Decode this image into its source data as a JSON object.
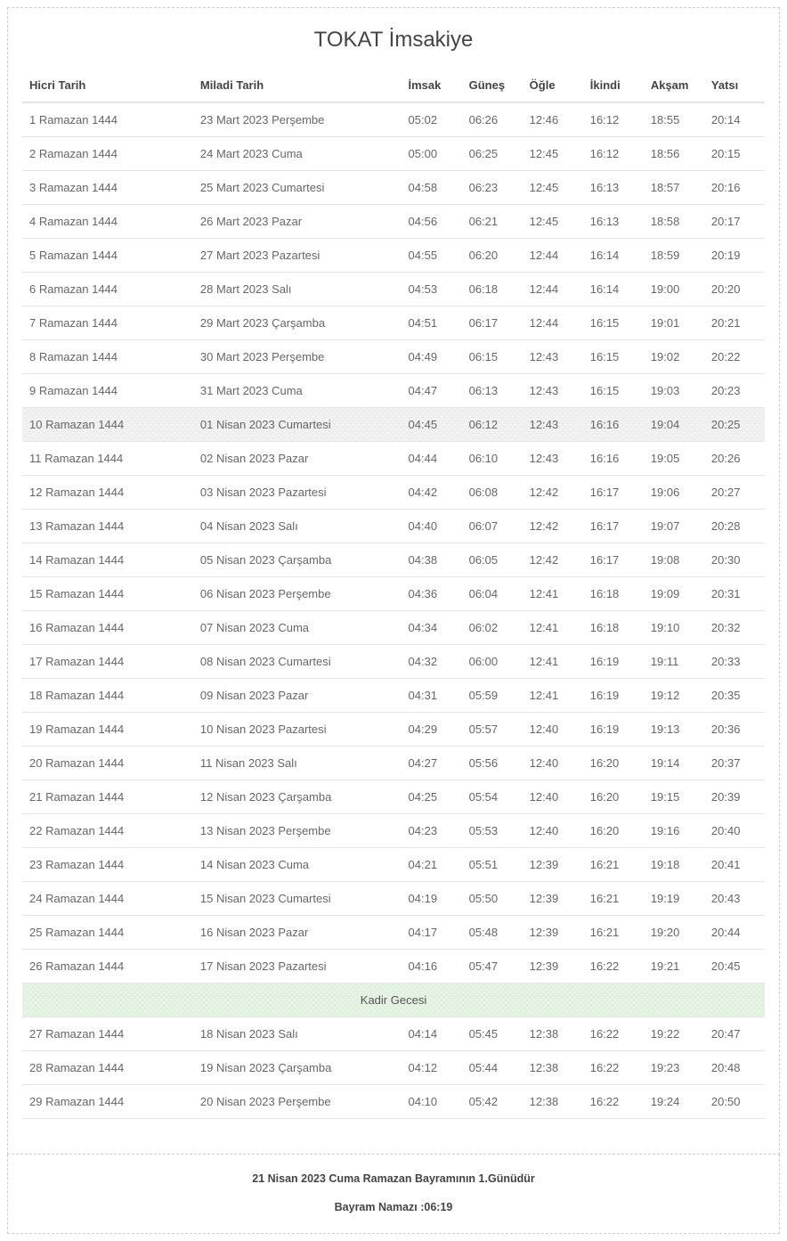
{
  "title": "TOKAT İmsakiye",
  "headers": {
    "hicri": "Hicri Tarih",
    "miladi": "Miladi Tarih",
    "imsak": "İmsak",
    "gunes": "Güneş",
    "ogle": "Öğle",
    "ikindi": "İkindi",
    "aksam": "Akşam",
    "yatsi": "Yatsı"
  },
  "special_row_label": "Kadir Gecesi",
  "highlight_index": 9,
  "special_row_after_index": 25,
  "rows": [
    {
      "hicri": "1 Ramazan 1444",
      "miladi": "23 Mart 2023 Perşembe",
      "imsak": "05:02",
      "gunes": "06:26",
      "ogle": "12:46",
      "ikindi": "16:12",
      "aksam": "18:55",
      "yatsi": "20:14"
    },
    {
      "hicri": "2 Ramazan 1444",
      "miladi": "24 Mart 2023 Cuma",
      "imsak": "05:00",
      "gunes": "06:25",
      "ogle": "12:45",
      "ikindi": "16:12",
      "aksam": "18:56",
      "yatsi": "20:15"
    },
    {
      "hicri": "3 Ramazan 1444",
      "miladi": "25 Mart 2023 Cumartesi",
      "imsak": "04:58",
      "gunes": "06:23",
      "ogle": "12:45",
      "ikindi": "16:13",
      "aksam": "18:57",
      "yatsi": "20:16"
    },
    {
      "hicri": "4 Ramazan 1444",
      "miladi": "26 Mart 2023 Pazar",
      "imsak": "04:56",
      "gunes": "06:21",
      "ogle": "12:45",
      "ikindi": "16:13",
      "aksam": "18:58",
      "yatsi": "20:17"
    },
    {
      "hicri": "5 Ramazan 1444",
      "miladi": "27 Mart 2023 Pazartesi",
      "imsak": "04:55",
      "gunes": "06:20",
      "ogle": "12:44",
      "ikindi": "16:14",
      "aksam": "18:59",
      "yatsi": "20:19"
    },
    {
      "hicri": "6 Ramazan 1444",
      "miladi": "28 Mart 2023 Salı",
      "imsak": "04:53",
      "gunes": "06:18",
      "ogle": "12:44",
      "ikindi": "16:14",
      "aksam": "19:00",
      "yatsi": "20:20"
    },
    {
      "hicri": "7 Ramazan 1444",
      "miladi": "29 Mart 2023 Çarşamba",
      "imsak": "04:51",
      "gunes": "06:17",
      "ogle": "12:44",
      "ikindi": "16:15",
      "aksam": "19:01",
      "yatsi": "20:21"
    },
    {
      "hicri": "8 Ramazan 1444",
      "miladi": "30 Mart 2023 Perşembe",
      "imsak": "04:49",
      "gunes": "06:15",
      "ogle": "12:43",
      "ikindi": "16:15",
      "aksam": "19:02",
      "yatsi": "20:22"
    },
    {
      "hicri": "9 Ramazan 1444",
      "miladi": "31 Mart 2023 Cuma",
      "imsak": "04:47",
      "gunes": "06:13",
      "ogle": "12:43",
      "ikindi": "16:15",
      "aksam": "19:03",
      "yatsi": "20:23"
    },
    {
      "hicri": "10 Ramazan 1444",
      "miladi": "01 Nisan 2023 Cumartesi",
      "imsak": "04:45",
      "gunes": "06:12",
      "ogle": "12:43",
      "ikindi": "16:16",
      "aksam": "19:04",
      "yatsi": "20:25"
    },
    {
      "hicri": "11 Ramazan 1444",
      "miladi": "02 Nisan 2023 Pazar",
      "imsak": "04:44",
      "gunes": "06:10",
      "ogle": "12:43",
      "ikindi": "16:16",
      "aksam": "19:05",
      "yatsi": "20:26"
    },
    {
      "hicri": "12 Ramazan 1444",
      "miladi": "03 Nisan 2023 Pazartesi",
      "imsak": "04:42",
      "gunes": "06:08",
      "ogle": "12:42",
      "ikindi": "16:17",
      "aksam": "19:06",
      "yatsi": "20:27"
    },
    {
      "hicri": "13 Ramazan 1444",
      "miladi": "04 Nisan 2023 Salı",
      "imsak": "04:40",
      "gunes": "06:07",
      "ogle": "12:42",
      "ikindi": "16:17",
      "aksam": "19:07",
      "yatsi": "20:28"
    },
    {
      "hicri": "14 Ramazan 1444",
      "miladi": "05 Nisan 2023 Çarşamba",
      "imsak": "04:38",
      "gunes": "06:05",
      "ogle": "12:42",
      "ikindi": "16:17",
      "aksam": "19:08",
      "yatsi": "20:30"
    },
    {
      "hicri": "15 Ramazan 1444",
      "miladi": "06 Nisan 2023 Perşembe",
      "imsak": "04:36",
      "gunes": "06:04",
      "ogle": "12:41",
      "ikindi": "16:18",
      "aksam": "19:09",
      "yatsi": "20:31"
    },
    {
      "hicri": "16 Ramazan 1444",
      "miladi": "07 Nisan 2023 Cuma",
      "imsak": "04:34",
      "gunes": "06:02",
      "ogle": "12:41",
      "ikindi": "16:18",
      "aksam": "19:10",
      "yatsi": "20:32"
    },
    {
      "hicri": "17 Ramazan 1444",
      "miladi": "08 Nisan 2023 Cumartesi",
      "imsak": "04:32",
      "gunes": "06:00",
      "ogle": "12:41",
      "ikindi": "16:19",
      "aksam": "19:11",
      "yatsi": "20:33"
    },
    {
      "hicri": "18 Ramazan 1444",
      "miladi": "09 Nisan 2023 Pazar",
      "imsak": "04:31",
      "gunes": "05:59",
      "ogle": "12:41",
      "ikindi": "16:19",
      "aksam": "19:12",
      "yatsi": "20:35"
    },
    {
      "hicri": "19 Ramazan 1444",
      "miladi": "10 Nisan 2023 Pazartesi",
      "imsak": "04:29",
      "gunes": "05:57",
      "ogle": "12:40",
      "ikindi": "16:19",
      "aksam": "19:13",
      "yatsi": "20:36"
    },
    {
      "hicri": "20 Ramazan 1444",
      "miladi": "11 Nisan 2023 Salı",
      "imsak": "04:27",
      "gunes": "05:56",
      "ogle": "12:40",
      "ikindi": "16:20",
      "aksam": "19:14",
      "yatsi": "20:37"
    },
    {
      "hicri": "21 Ramazan 1444",
      "miladi": "12 Nisan 2023 Çarşamba",
      "imsak": "04:25",
      "gunes": "05:54",
      "ogle": "12:40",
      "ikindi": "16:20",
      "aksam": "19:15",
      "yatsi": "20:39"
    },
    {
      "hicri": "22 Ramazan 1444",
      "miladi": "13 Nisan 2023 Perşembe",
      "imsak": "04:23",
      "gunes": "05:53",
      "ogle": "12:40",
      "ikindi": "16:20",
      "aksam": "19:16",
      "yatsi": "20:40"
    },
    {
      "hicri": "23 Ramazan 1444",
      "miladi": "14 Nisan 2023 Cuma",
      "imsak": "04:21",
      "gunes": "05:51",
      "ogle": "12:39",
      "ikindi": "16:21",
      "aksam": "19:18",
      "yatsi": "20:41"
    },
    {
      "hicri": "24 Ramazan 1444",
      "miladi": "15 Nisan 2023 Cumartesi",
      "imsak": "04:19",
      "gunes": "05:50",
      "ogle": "12:39",
      "ikindi": "16:21",
      "aksam": "19:19",
      "yatsi": "20:43"
    },
    {
      "hicri": "25 Ramazan 1444",
      "miladi": "16 Nisan 2023 Pazar",
      "imsak": "04:17",
      "gunes": "05:48",
      "ogle": "12:39",
      "ikindi": "16:21",
      "aksam": "19:20",
      "yatsi": "20:44"
    },
    {
      "hicri": "26 Ramazan 1444",
      "miladi": "17 Nisan 2023 Pazartesi",
      "imsak": "04:16",
      "gunes": "05:47",
      "ogle": "12:39",
      "ikindi": "16:22",
      "aksam": "19:21",
      "yatsi": "20:45"
    },
    {
      "hicri": "27 Ramazan 1444",
      "miladi": "18 Nisan 2023 Salı",
      "imsak": "04:14",
      "gunes": "05:45",
      "ogle": "12:38",
      "ikindi": "16:22",
      "aksam": "19:22",
      "yatsi": "20:47"
    },
    {
      "hicri": "28 Ramazan 1444",
      "miladi": "19 Nisan 2023 Çarşamba",
      "imsak": "04:12",
      "gunes": "05:44",
      "ogle": "12:38",
      "ikindi": "16:22",
      "aksam": "19:23",
      "yatsi": "20:48"
    },
    {
      "hicri": "29 Ramazan 1444",
      "miladi": "20 Nisan 2023 Perşembe",
      "imsak": "04:10",
      "gunes": "05:42",
      "ogle": "12:38",
      "ikindi": "16:22",
      "aksam": "19:24",
      "yatsi": "20:50"
    }
  ],
  "footer": {
    "line1": "21 Nisan 2023 Cuma Ramazan Bayramının 1.Günüdür",
    "line2": "Bayram Namazı :06:19"
  },
  "colors": {
    "background": "#ffffff",
    "border": "#cccccc",
    "row_border": "#e4e4e4",
    "text": "#666666",
    "header_text": "#444444",
    "highlight_bg": "#efefef",
    "special_bg": "#e3f1e0"
  }
}
